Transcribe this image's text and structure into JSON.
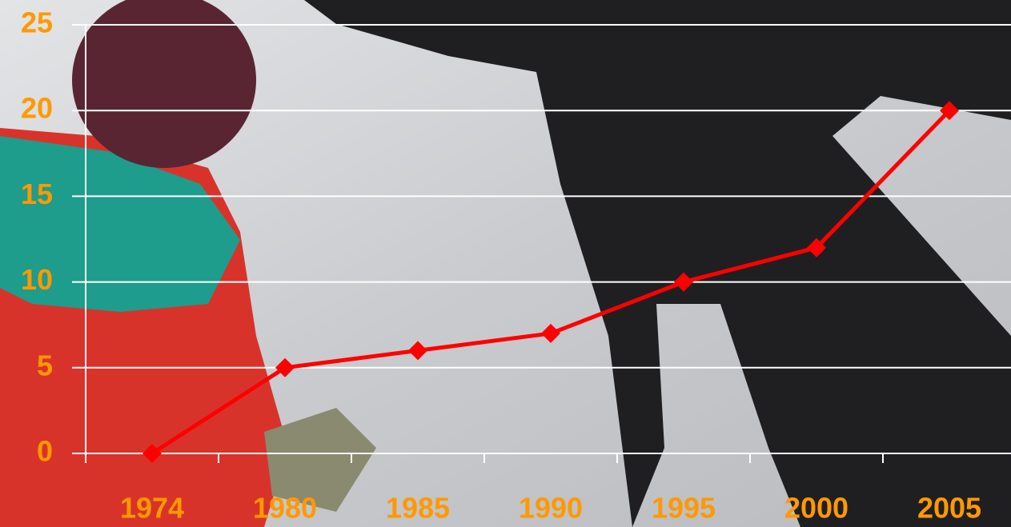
{
  "chart_data": {
    "type": "line",
    "categories": [
      "1974",
      "1980",
      "1985",
      "1990",
      "1995",
      "2000",
      "2005"
    ],
    "values": [
      0,
      5,
      6,
      7,
      10,
      12,
      20
    ],
    "color": "#ff0000",
    "ylim": [
      0,
      25
    ],
    "yticks": [
      0,
      5,
      10,
      15,
      20,
      25
    ],
    "grid": true
  }
}
